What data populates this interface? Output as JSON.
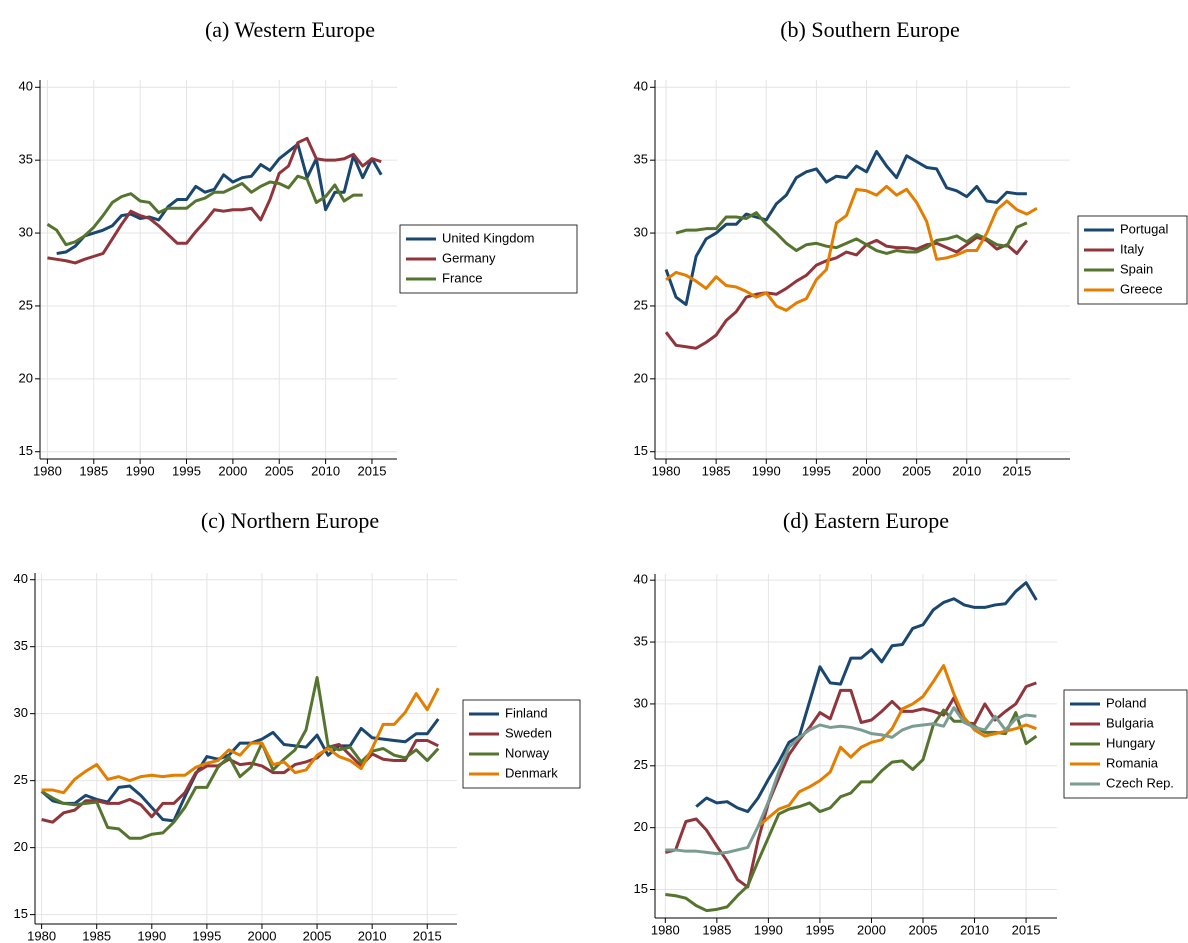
{
  "chart_data": [
    {
      "type": "line",
      "title": "(a) Western Europe",
      "x": [
        1980,
        1981,
        1982,
        1983,
        1984,
        1985,
        1986,
        1987,
        1988,
        1989,
        1990,
        1991,
        1992,
        1993,
        1994,
        1995,
        1996,
        1997,
        1998,
        1999,
        2000,
        2001,
        2002,
        2003,
        2004,
        2005,
        2006,
        2007,
        2008,
        2009,
        2010,
        2011,
        2012,
        2013,
        2014,
        2015,
        2016,
        2017
      ],
      "xlim": [
        1979.2,
        2017.7
      ],
      "ylim": [
        14.5,
        40.5
      ],
      "xticks": [
        1980,
        1985,
        1990,
        1995,
        2000,
        2005,
        2010,
        2015
      ],
      "yticks": [
        15,
        20,
        25,
        30,
        35,
        40
      ],
      "grid": true,
      "legend": "right",
      "series": [
        {
          "name": "United Kingdom",
          "color": "#1a476f",
          "values": [
            null,
            28.6,
            28.7,
            29.1,
            29.8,
            30.0,
            30.2,
            30.5,
            31.2,
            31.3,
            31.0,
            31.1,
            30.9,
            31.8,
            32.3,
            32.3,
            33.2,
            32.8,
            33.0,
            34.0,
            33.5,
            33.8,
            33.9,
            34.7,
            34.3,
            35.1,
            35.6,
            36.1,
            33.8,
            35.1,
            31.6,
            32.8,
            32.8,
            35.3,
            33.8,
            35.1,
            34.0,
            null
          ]
        },
        {
          "name": "Germany",
          "color": "#90353b",
          "values": [
            28.3,
            28.2,
            28.1,
            27.95,
            28.2,
            28.4,
            28.6,
            29.6,
            30.6,
            31.5,
            31.2,
            31.0,
            30.5,
            29.9,
            29.3,
            29.3,
            30.1,
            30.8,
            31.6,
            31.5,
            31.6,
            31.6,
            31.7,
            30.9,
            32.3,
            34.1,
            34.6,
            36.2,
            36.5,
            35.1,
            35.0,
            35.0,
            35.1,
            35.4,
            34.6,
            35.1,
            34.9,
            null
          ]
        },
        {
          "name": "France",
          "color": "#55752f",
          "values": [
            30.6,
            30.2,
            29.2,
            29.4,
            29.8,
            30.4,
            31.2,
            32.1,
            32.5,
            32.7,
            32.2,
            32.1,
            31.4,
            31.7,
            31.7,
            31.7,
            32.2,
            32.4,
            32.8,
            32.8,
            33.1,
            33.4,
            32.8,
            33.2,
            33.5,
            33.4,
            33.1,
            33.9,
            33.7,
            32.1,
            32.5,
            33.3,
            32.2,
            32.6,
            32.6,
            null,
            null,
            null
          ]
        }
      ]
    },
    {
      "type": "line",
      "title": "(b) Southern Europe",
      "x": [
        1980,
        1981,
        1982,
        1983,
        1984,
        1985,
        1986,
        1987,
        1988,
        1989,
        1990,
        1991,
        1992,
        1993,
        1994,
        1995,
        1996,
        1997,
        1998,
        1999,
        2000,
        2001,
        2002,
        2003,
        2004,
        2005,
        2006,
        2007,
        2008,
        2009,
        2010,
        2011,
        2012,
        2013,
        2014,
        2015,
        2016,
        2017
      ],
      "xlim": [
        1978.9,
        2020.3
      ],
      "ylim": [
        14.5,
        40.5
      ],
      "xticks": [
        1980,
        1985,
        1990,
        1995,
        2000,
        2005,
        2010,
        2015
      ],
      "yticks": [
        15,
        20,
        25,
        30,
        35,
        40
      ],
      "grid": true,
      "legend": "right",
      "series": [
        {
          "name": "Portugal",
          "color": "#1a476f",
          "values": [
            27.5,
            25.6,
            25.1,
            28.4,
            29.6,
            30.0,
            30.6,
            30.6,
            31.3,
            31.1,
            30.9,
            32.0,
            32.6,
            33.8,
            34.2,
            34.4,
            33.5,
            33.9,
            33.8,
            34.6,
            34.2,
            35.6,
            34.6,
            33.8,
            35.3,
            34.9,
            34.5,
            34.4,
            33.1,
            32.9,
            32.5,
            33.2,
            32.2,
            32.1,
            32.8,
            32.7,
            32.7,
            null
          ]
        },
        {
          "name": "Italy",
          "color": "#90353b",
          "values": [
            23.2,
            22.3,
            22.2,
            22.1,
            22.5,
            23.0,
            24.0,
            24.6,
            25.6,
            25.8,
            25.9,
            25.8,
            26.2,
            26.7,
            27.1,
            27.8,
            28.1,
            28.3,
            28.7,
            28.5,
            29.2,
            29.5,
            29.1,
            29.0,
            29.0,
            28.9,
            29.2,
            29.3,
            29.0,
            28.7,
            29.2,
            29.7,
            29.5,
            28.9,
            29.2,
            28.6,
            29.5,
            null
          ]
        },
        {
          "name": "Spain",
          "color": "#55752f",
          "values": [
            null,
            30.0,
            30.2,
            30.2,
            30.3,
            30.3,
            31.1,
            31.1,
            31.0,
            31.4,
            30.6,
            30.0,
            29.3,
            28.8,
            29.2,
            29.3,
            29.1,
            29.0,
            29.3,
            29.6,
            29.2,
            28.8,
            28.6,
            28.8,
            28.7,
            28.7,
            29.0,
            29.5,
            29.6,
            29.8,
            29.4,
            29.9,
            29.6,
            29.2,
            29.1,
            30.4,
            30.7,
            null
          ]
        },
        {
          "name": "Greece",
          "color": "#e37e00",
          "values": [
            26.8,
            27.3,
            27.1,
            26.7,
            26.2,
            27.0,
            26.4,
            26.3,
            26.0,
            25.6,
            25.9,
            25.0,
            24.7,
            25.2,
            25.5,
            26.8,
            27.5,
            30.7,
            31.2,
            33.0,
            32.9,
            32.6,
            33.2,
            32.6,
            33.0,
            32.1,
            30.8,
            28.2,
            28.3,
            28.5,
            28.8,
            28.8,
            30.0,
            31.6,
            32.2,
            31.6,
            31.3,
            31.7
          ]
        }
      ]
    },
    {
      "type": "line",
      "title": "(c) Northern Europe",
      "x": [
        1980,
        1981,
        1982,
        1983,
        1984,
        1985,
        1986,
        1987,
        1988,
        1989,
        1990,
        1991,
        1992,
        1993,
        1994,
        1995,
        1996,
        1997,
        1998,
        1999,
        2000,
        2001,
        2002,
        2003,
        2004,
        2005,
        2006,
        2007,
        2008,
        2009,
        2010,
        2011,
        2012,
        2013,
        2014,
        2015,
        2016,
        2017
      ],
      "xlim": [
        1979.4,
        2017.7
      ],
      "ylim": [
        14.3,
        40.5
      ],
      "xticks": [
        1980,
        1985,
        1990,
        1995,
        2000,
        2005,
        2010,
        2015
      ],
      "yticks": [
        15,
        20,
        25,
        30,
        35,
        40
      ],
      "grid": true,
      "legend": "right",
      "series": [
        {
          "name": "Finland",
          "color": "#1a476f",
          "values": [
            24.2,
            23.5,
            23.3,
            23.3,
            23.9,
            23.6,
            23.4,
            24.5,
            24.6,
            23.9,
            23.0,
            22.1,
            22.0,
            23.8,
            25.5,
            26.8,
            26.6,
            26.9,
            27.8,
            27.8,
            28.1,
            28.6,
            27.7,
            27.6,
            27.5,
            28.4,
            26.9,
            27.6,
            27.6,
            28.9,
            28.2,
            28.1,
            28.0,
            27.9,
            28.5,
            28.5,
            29.6,
            null
          ]
        },
        {
          "name": "Sweden",
          "color": "#90353b",
          "values": [
            22.1,
            21.9,
            22.6,
            22.8,
            23.5,
            23.5,
            23.3,
            23.3,
            23.6,
            23.2,
            22.3,
            23.3,
            23.3,
            24.1,
            25.6,
            26.1,
            26.1,
            26.6,
            26.2,
            26.3,
            26.1,
            25.6,
            25.6,
            26.2,
            26.4,
            26.7,
            27.5,
            27.7,
            26.9,
            26.1,
            27.0,
            26.6,
            26.5,
            26.5,
            28.0,
            28.0,
            27.6,
            null
          ]
        },
        {
          "name": "Norway",
          "color": "#55752f",
          "values": [
            24.2,
            23.7,
            23.3,
            23.2,
            23.3,
            23.4,
            21.5,
            21.4,
            20.7,
            20.7,
            21.0,
            21.1,
            21.9,
            23.0,
            24.5,
            24.5,
            26.0,
            26.8,
            25.3,
            26.0,
            27.8,
            25.8,
            26.6,
            27.3,
            28.8,
            32.7,
            27.6,
            27.3,
            27.5,
            26.4,
            27.2,
            27.4,
            26.9,
            26.7,
            27.3,
            26.5,
            27.4,
            null
          ]
        },
        {
          "name": "Denmark",
          "color": "#e37e00",
          "values": [
            24.3,
            24.3,
            24.1,
            25.1,
            25.7,
            26.2,
            25.1,
            25.3,
            25.0,
            25.3,
            25.4,
            25.3,
            25.4,
            25.4,
            26.0,
            26.3,
            26.5,
            27.3,
            26.9,
            27.8,
            27.8,
            26.2,
            26.4,
            25.6,
            25.8,
            26.9,
            27.4,
            26.8,
            26.5,
            25.9,
            27.4,
            29.2,
            29.2,
            30.1,
            31.5,
            30.3,
            31.9,
            null
          ]
        }
      ]
    },
    {
      "type": "line",
      "title": "(d) Eastern Europe",
      "x": [
        1980,
        1981,
        1982,
        1983,
        1984,
        1985,
        1986,
        1987,
        1988,
        1989,
        1990,
        1991,
        1992,
        1993,
        1994,
        1995,
        1996,
        1997,
        1998,
        1999,
        2000,
        2001,
        2002,
        2003,
        2004,
        2005,
        2006,
        2007,
        2008,
        2009,
        2010,
        2011,
        2012,
        2013,
        2014,
        2015,
        2016,
        2017
      ],
      "xlim": [
        1979,
        2018
      ],
      "ylim": [
        12.7,
        40.5
      ],
      "xticks": [
        1980,
        1985,
        1990,
        1995,
        2000,
        2005,
        2010,
        2015
      ],
      "yticks": [
        15,
        20,
        25,
        30,
        35,
        40
      ],
      "grid": true,
      "legend": "right",
      "series": [
        {
          "name": "Poland",
          "color": "#1a476f",
          "values": [
            null,
            null,
            null,
            21.7,
            22.4,
            22.0,
            22.1,
            21.6,
            21.3,
            22.4,
            23.9,
            25.3,
            26.9,
            27.4,
            30.2,
            33.0,
            31.7,
            31.6,
            33.7,
            33.7,
            34.4,
            33.4,
            34.7,
            34.8,
            36.1,
            36.4,
            37.6,
            38.2,
            38.5,
            38.0,
            37.8,
            37.8,
            38.0,
            38.1,
            39.1,
            39.8,
            38.4,
            null
          ]
        },
        {
          "name": "Bulgaria",
          "color": "#90353b",
          "values": [
            18.0,
            18.2,
            20.5,
            20.7,
            19.8,
            18.5,
            17.3,
            15.8,
            15.2,
            19.0,
            22.0,
            24.0,
            25.9,
            27.1,
            28.1,
            29.3,
            28.8,
            31.1,
            31.1,
            28.5,
            28.7,
            29.4,
            30.2,
            29.4,
            29.4,
            29.6,
            29.4,
            29.1,
            30.5,
            28.5,
            28.4,
            30.0,
            28.7,
            29.4,
            30.0,
            31.4,
            31.7,
            null
          ]
        },
        {
          "name": "Hungary",
          "color": "#55752f",
          "values": [
            14.6,
            14.5,
            14.3,
            13.7,
            13.3,
            13.4,
            13.6,
            14.5,
            15.3,
            17.3,
            19.2,
            21.1,
            21.5,
            21.7,
            22.0,
            21.3,
            21.6,
            22.5,
            22.8,
            23.7,
            23.7,
            24.6,
            25.3,
            25.4,
            24.7,
            25.5,
            28.3,
            29.5,
            28.6,
            28.6,
            28.2,
            27.7,
            27.7,
            27.6,
            29.3,
            26.8,
            27.4,
            null
          ]
        },
        {
          "name": "Romania",
          "color": "#e37e00",
          "values": [
            null,
            null,
            null,
            null,
            null,
            null,
            null,
            null,
            null,
            20.1,
            20.8,
            21.5,
            21.8,
            22.9,
            23.3,
            23.8,
            24.5,
            26.5,
            25.7,
            26.5,
            26.9,
            27.1,
            28.0,
            29.6,
            30.0,
            30.6,
            31.8,
            33.1,
            30.8,
            28.9,
            27.9,
            27.4,
            27.6,
            27.8,
            28.0,
            28.3,
            28.0,
            null
          ]
        },
        {
          "name": "Czech Rep.",
          "color": "#7b9c92",
          "values": [
            18.2,
            18.2,
            18.1,
            18.1,
            18.0,
            17.9,
            18.0,
            18.2,
            18.4,
            20.1,
            22.1,
            24.5,
            26.5,
            27.3,
            27.9,
            28.3,
            28.1,
            28.2,
            28.1,
            27.9,
            27.6,
            27.5,
            27.3,
            27.9,
            28.2,
            28.3,
            28.4,
            28.2,
            29.7,
            28.5,
            28.1,
            27.9,
            29.0,
            27.9,
            28.8,
            29.1,
            29.0,
            null
          ]
        }
      ]
    }
  ]
}
